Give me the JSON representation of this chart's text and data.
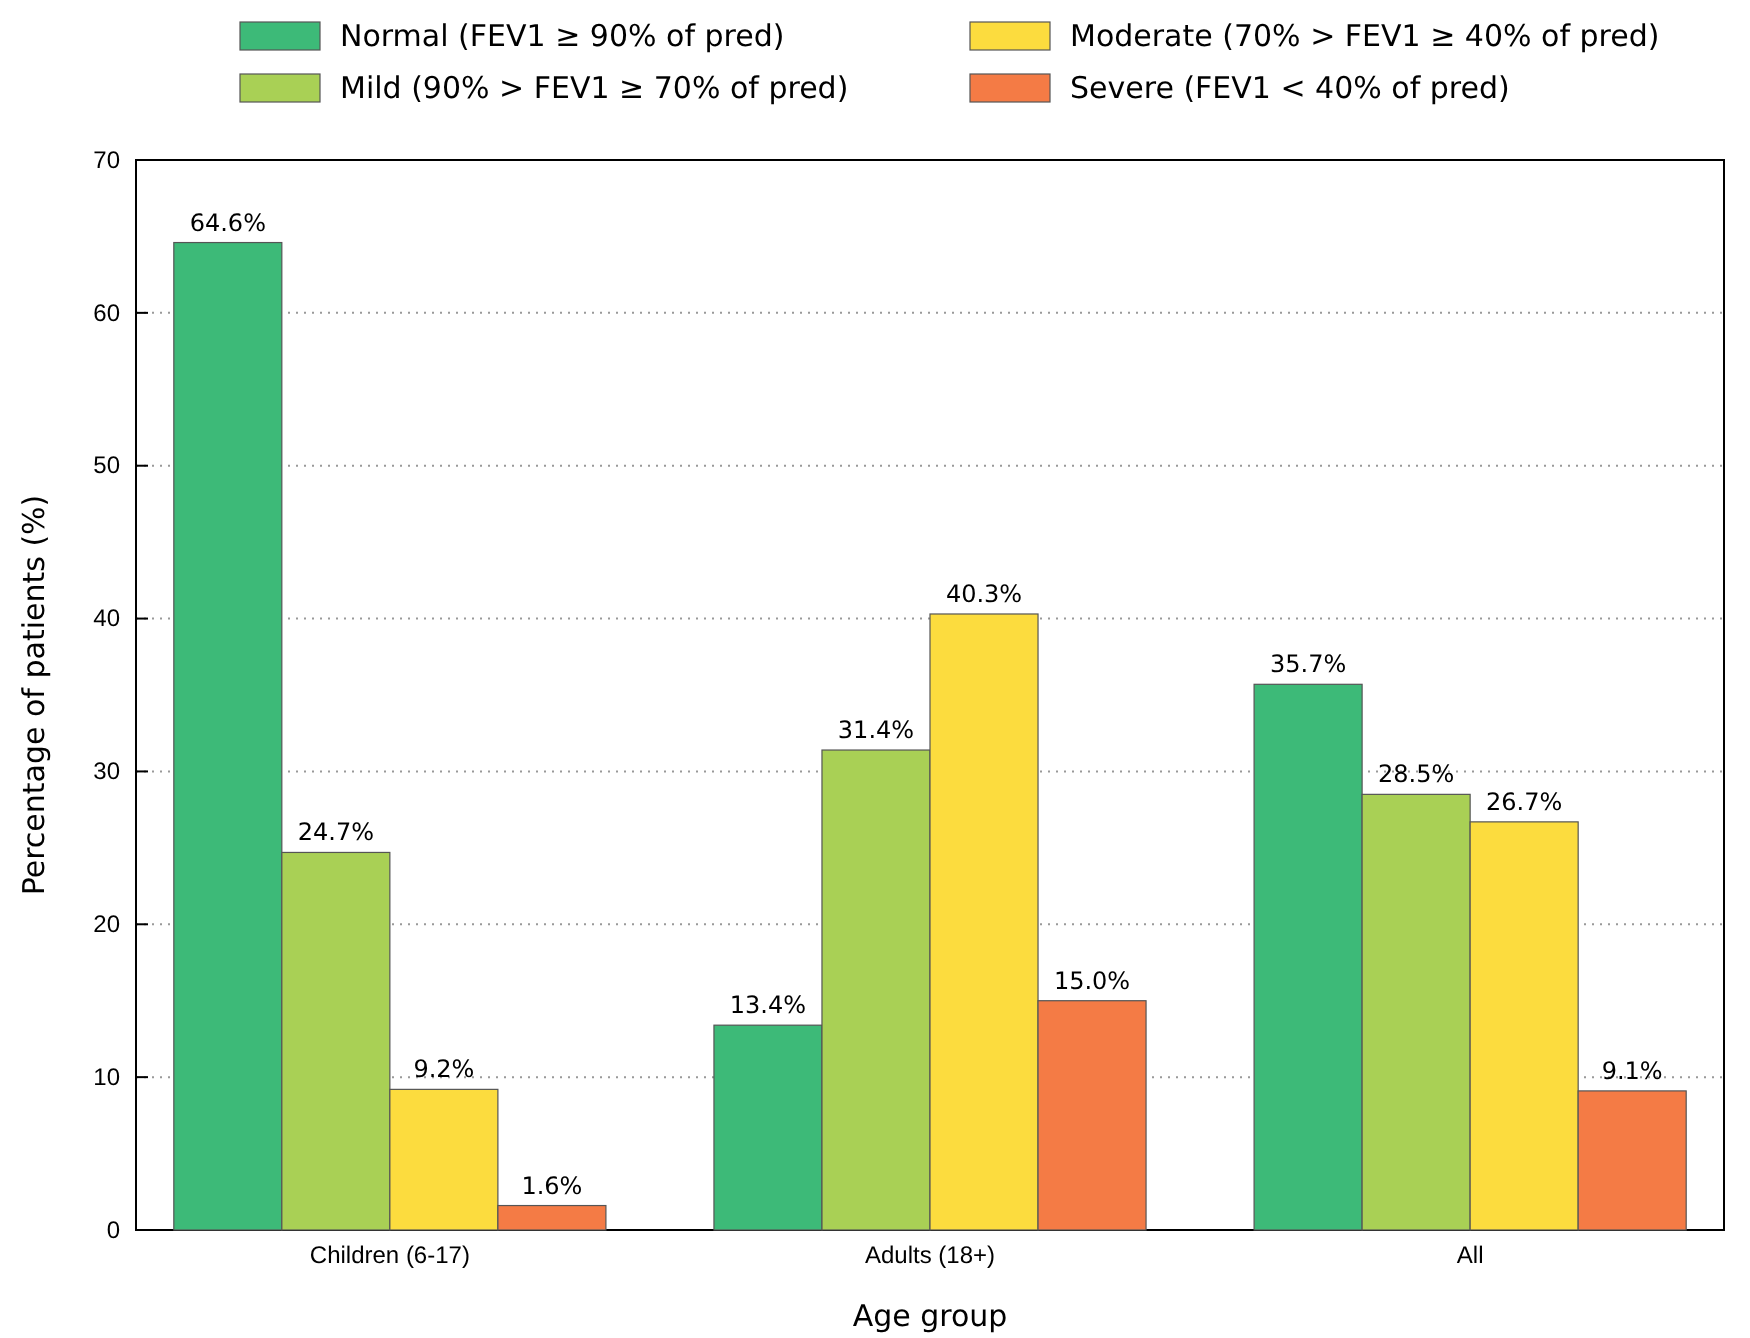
{
  "chart_data": {
    "type": "bar",
    "xlabel": "Age group",
    "ylabel": "Percentage of patients (%)",
    "categories": [
      "Children (6-17)",
      "Adults (18+)",
      "All"
    ],
    "series": [
      {
        "name": "Normal (FEV1 ≥ 90% of pred)",
        "color": "#3dba78",
        "values": [
          64.6,
          13.4,
          35.7
        ],
        "value_labels": [
          "64.6%",
          "13.4%",
          "35.7%"
        ]
      },
      {
        "name": "Mild (90% > FEV1 ≥ 70% of pred)",
        "color": "#a9d055",
        "values": [
          24.7,
          31.4,
          28.5
        ],
        "value_labels": [
          "24.7%",
          "31.4%",
          "28.5%"
        ]
      },
      {
        "name": "Moderate (70% > FEV1 ≥ 40% of pred)",
        "color": "#fcdc3e",
        "values": [
          9.2,
          40.3,
          26.7
        ],
        "value_labels": [
          "9.2%",
          "40.3%",
          "26.7%"
        ]
      },
      {
        "name": "Severe (FEV1 < 40% of pred)",
        "color": "#f47b45",
        "values": [
          1.6,
          15.0,
          9.1
        ],
        "value_labels": [
          "1.6%",
          "15.0%",
          "9.1%"
        ]
      }
    ],
    "ylim": [
      0,
      70
    ],
    "yticks": [
      0,
      10,
      20,
      30,
      40,
      50,
      60,
      70
    ],
    "grid": "y",
    "legend": "top"
  }
}
